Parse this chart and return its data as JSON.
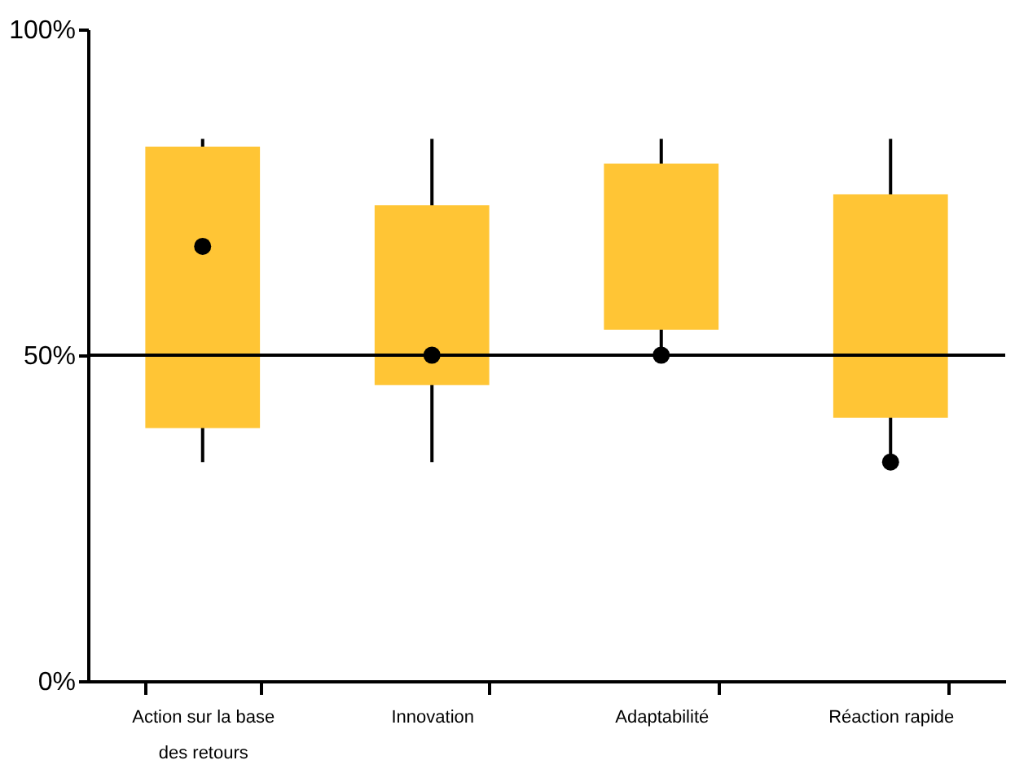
{
  "chart_data": {
    "type": "box",
    "categories": [
      "Action sur la base des retours",
      "Innovation",
      "Adaptabilité",
      "Réaction rapide"
    ],
    "boxes": [
      {
        "low": 33.6,
        "q1": 38.8,
        "q3": 82,
        "high": 83.2,
        "mean": 66.7
      },
      {
        "low": 33.6,
        "q1": 45.4,
        "q3": 73,
        "high": 83.2,
        "mean": 50
      },
      {
        "low": 50,
        "q1": 53.9,
        "q3": 79.4,
        "high": 83.2,
        "mean": 50
      },
      {
        "low": 33.6,
        "q1": 40.4,
        "q3": 74.7,
        "high": 83.2,
        "mean": 33.6
      }
    ],
    "color": "#ffc535",
    "ylim": [
      0,
      100
    ],
    "yticks": [
      {
        "value": 0,
        "label": "0%"
      },
      {
        "value": 50,
        "label": "50%"
      },
      {
        "value": 100,
        "label": "100%"
      }
    ],
    "ref_lines": [
      {
        "axis": "y",
        "value": 50,
        "label": null,
        "color": "#000000"
      }
    ],
    "grid": false
  }
}
